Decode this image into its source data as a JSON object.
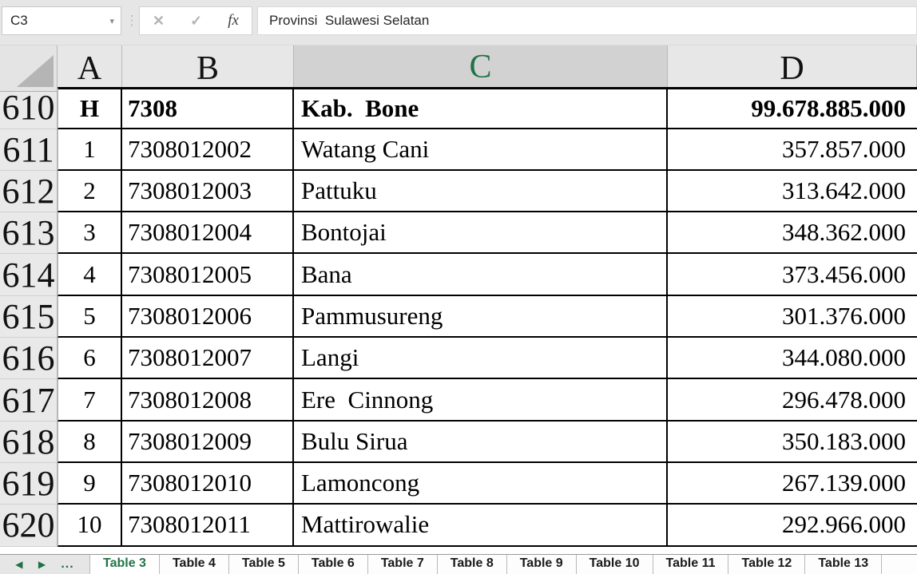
{
  "formula_bar": {
    "name_box_value": "C3",
    "caret_icon": "▾",
    "dots_icon": "⋮",
    "cancel_icon": "✕",
    "enter_icon": "✓",
    "fx_icon": "fx",
    "formula_text": "Provinsi  Sulawesi Selatan"
  },
  "colors": {
    "excel_green": "#217346",
    "selected_header_underline": "#1f6b45",
    "selected_header_bg": "#d2d2d2",
    "header_bg": "#e7e7e7",
    "chrome_bg": "#e6e6e6"
  },
  "grid": {
    "column_headers": [
      "A",
      "B",
      "C",
      "D"
    ],
    "selected_column": "C",
    "rows": [
      {
        "row": "610",
        "a": "H",
        "b": "7308",
        "c": "Kab.  Bone",
        "d": "99.678.885.000",
        "bold": true
      },
      {
        "row": "611",
        "a": "1",
        "b": "7308012002",
        "c": "Watang Cani",
        "d": "357.857.000"
      },
      {
        "row": "612",
        "a": "2",
        "b": "7308012003",
        "c": "Pattuku",
        "d": "313.642.000"
      },
      {
        "row": "613",
        "a": "3",
        "b": "7308012004",
        "c": "Bontojai",
        "d": "348.362.000"
      },
      {
        "row": "614",
        "a": "4",
        "b": "7308012005",
        "c": "Bana",
        "d": "373.456.000"
      },
      {
        "row": "615",
        "a": "5",
        "b": "7308012006",
        "c": "Pammusureng",
        "d": "301.376.000"
      },
      {
        "row": "616",
        "a": "6",
        "b": "7308012007",
        "c": "Langi",
        "d": "344.080.000"
      },
      {
        "row": "617",
        "a": "7",
        "b": "7308012008",
        "c": "Ere  Cinnong",
        "d": "296.478.000"
      },
      {
        "row": "618",
        "a": "8",
        "b": "7308012009",
        "c": "Bulu Sirua",
        "d": "350.183.000"
      },
      {
        "row": "619",
        "a": "9",
        "b": "7308012010",
        "c": "Lamoncong",
        "d": "267.139.000"
      },
      {
        "row": "620",
        "a": "10",
        "b": "7308012011",
        "c": "Mattirowalie",
        "d": "292.966.000"
      }
    ]
  },
  "sheet_tabs": {
    "nav_left_icon": "◀",
    "nav_right_icon": "▶",
    "more_icon": "...",
    "active_tab": "Table 3",
    "tabs": [
      "Table 3",
      "Table 4",
      "Table 5",
      "Table 6",
      "Table 7",
      "Table 8",
      "Table 9",
      "Table 10",
      "Table 11",
      "Table 12",
      "Table 13"
    ]
  }
}
